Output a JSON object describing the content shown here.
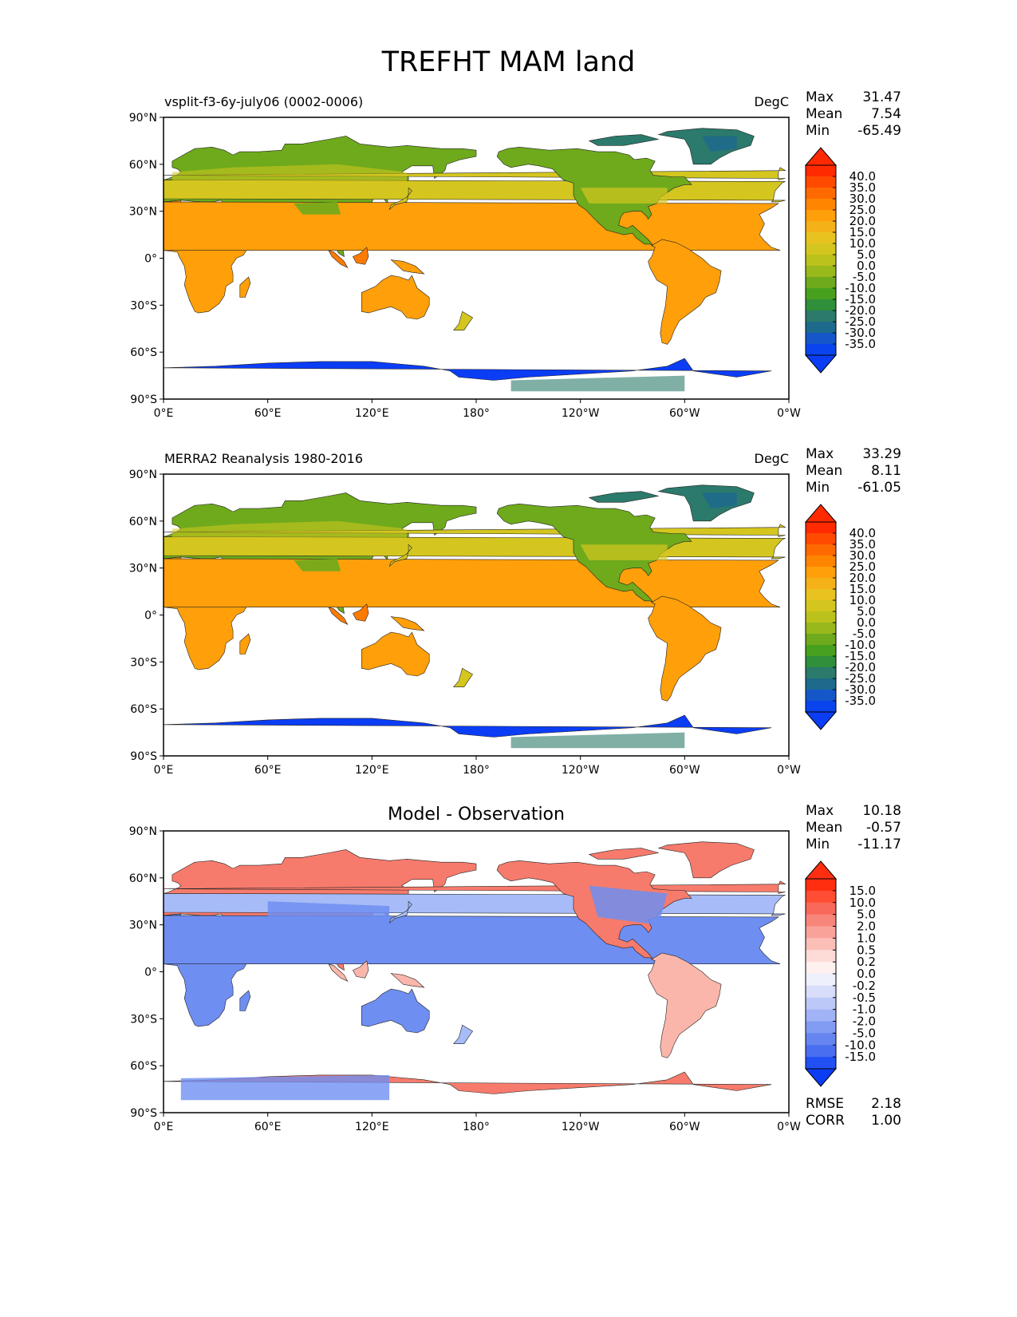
{
  "title": "TREFHT MAM land",
  "panels": [
    {
      "id": "model",
      "left_title": "vsplit-f3-6y-july06 (0002-0006)",
      "center_title": "",
      "units": "DegC",
      "stats": [
        {
          "label": "Max",
          "value": "31.47"
        },
        {
          "label": "Mean",
          "value": "7.54"
        },
        {
          "label": "Min",
          "value": "-65.49"
        }
      ],
      "colorbar": {
        "labels": [
          "40.0",
          "35.0",
          "30.0",
          "25.0",
          "20.0",
          "15.0",
          "10.0",
          "5.0",
          "0.0",
          "-5.0",
          "-10.0",
          "-15.0",
          "-20.0",
          "-25.0",
          "-30.0",
          "-35.0"
        ],
        "colors": [
          "#ff2a00",
          "#ff4a00",
          "#ff6a00",
          "#ff8500",
          "#ff9f0a",
          "#f5b118",
          "#e8c21e",
          "#d4c61f",
          "#bcc21c",
          "#98b81c",
          "#6eaa1c",
          "#48a11e",
          "#2f8f3b",
          "#2b7a6b",
          "#1e6a8c",
          "#1557c9",
          "#0a44ee"
        ],
        "over_color": "#ff2a00",
        "under_color": "#0b3df5"
      },
      "footer": []
    },
    {
      "id": "obs",
      "left_title": "MERRA2 Reanalysis 1980-2016",
      "center_title": "",
      "units": "DegC",
      "stats": [
        {
          "label": "Max",
          "value": "33.29"
        },
        {
          "label": "Mean",
          "value": "8.11"
        },
        {
          "label": "Min",
          "value": "-61.05"
        }
      ],
      "colorbar": {
        "labels": [
          "40.0",
          "35.0",
          "30.0",
          "25.0",
          "20.0",
          "15.0",
          "10.0",
          "5.0",
          "0.0",
          "-5.0",
          "-10.0",
          "-15.0",
          "-20.0",
          "-25.0",
          "-30.0",
          "-35.0"
        ],
        "colors": [
          "#ff2a00",
          "#ff4a00",
          "#ff6a00",
          "#ff8500",
          "#ff9f0a",
          "#f5b118",
          "#e8c21e",
          "#d4c61f",
          "#bcc21c",
          "#98b81c",
          "#6eaa1c",
          "#48a11e",
          "#2f8f3b",
          "#2b7a6b",
          "#1e6a8c",
          "#1557c9",
          "#0a44ee"
        ],
        "over_color": "#ff2a00",
        "under_color": "#0b3df5"
      },
      "footer": []
    },
    {
      "id": "diff",
      "left_title": "",
      "center_title": "Model - Observation",
      "units": "",
      "stats": [
        {
          "label": "Max",
          "value": "10.18"
        },
        {
          "label": "Mean",
          "value": "-0.57"
        },
        {
          "label": "Min",
          "value": "-11.17"
        }
      ],
      "colorbar": {
        "labels": [
          "15.0",
          "10.0",
          "5.0",
          "2.0",
          "1.0",
          "0.5",
          "0.2",
          "0.0",
          "-0.2",
          "-0.5",
          "-1.0",
          "-2.0",
          "-5.0",
          "-10.0",
          "-15.0"
        ],
        "colors": [
          "#ff2e10",
          "#ff4d33",
          "#f9695a",
          "#f8857a",
          "#f9a29a",
          "#fbbfb8",
          "#fddcd8",
          "#fdf0ee",
          "#eef0fb",
          "#d8def9",
          "#bcc9f8",
          "#a0b3f6",
          "#839cf3",
          "#6685f0",
          "#4a6ef0",
          "#2150f5"
        ],
        "over_color": "#ff2e10",
        "under_color": "#0b3df5"
      },
      "footer": [
        {
          "label": "RMSE",
          "value": "2.18"
        },
        {
          "label": "CORR",
          "value": "1.00"
        }
      ]
    }
  ],
  "map": {
    "lat_ticks": [
      "90°N",
      "60°N",
      "30°N",
      "0°",
      "30°S",
      "60°S",
      "90°S"
    ],
    "lon_ticks": [
      "0°E",
      "60°E",
      "120°E",
      "180°",
      "120°W",
      "60°W",
      "0°W"
    ]
  },
  "colors": {
    "model_palette": {
      "ice": "#0b3df5",
      "cold": "#2b7a6b",
      "mid": "#6eaa1c",
      "warm": "#d4c61f",
      "hot": "#ff9f0a",
      "hottest": "#ff7a00"
    },
    "diff_palette": {
      "neg": "#6f8ef1",
      "neg_light": "#a6bbf7",
      "pos": "#f77b6c",
      "pos_light": "#fbb6ab",
      "neutral": "#fdf0ee"
    }
  }
}
